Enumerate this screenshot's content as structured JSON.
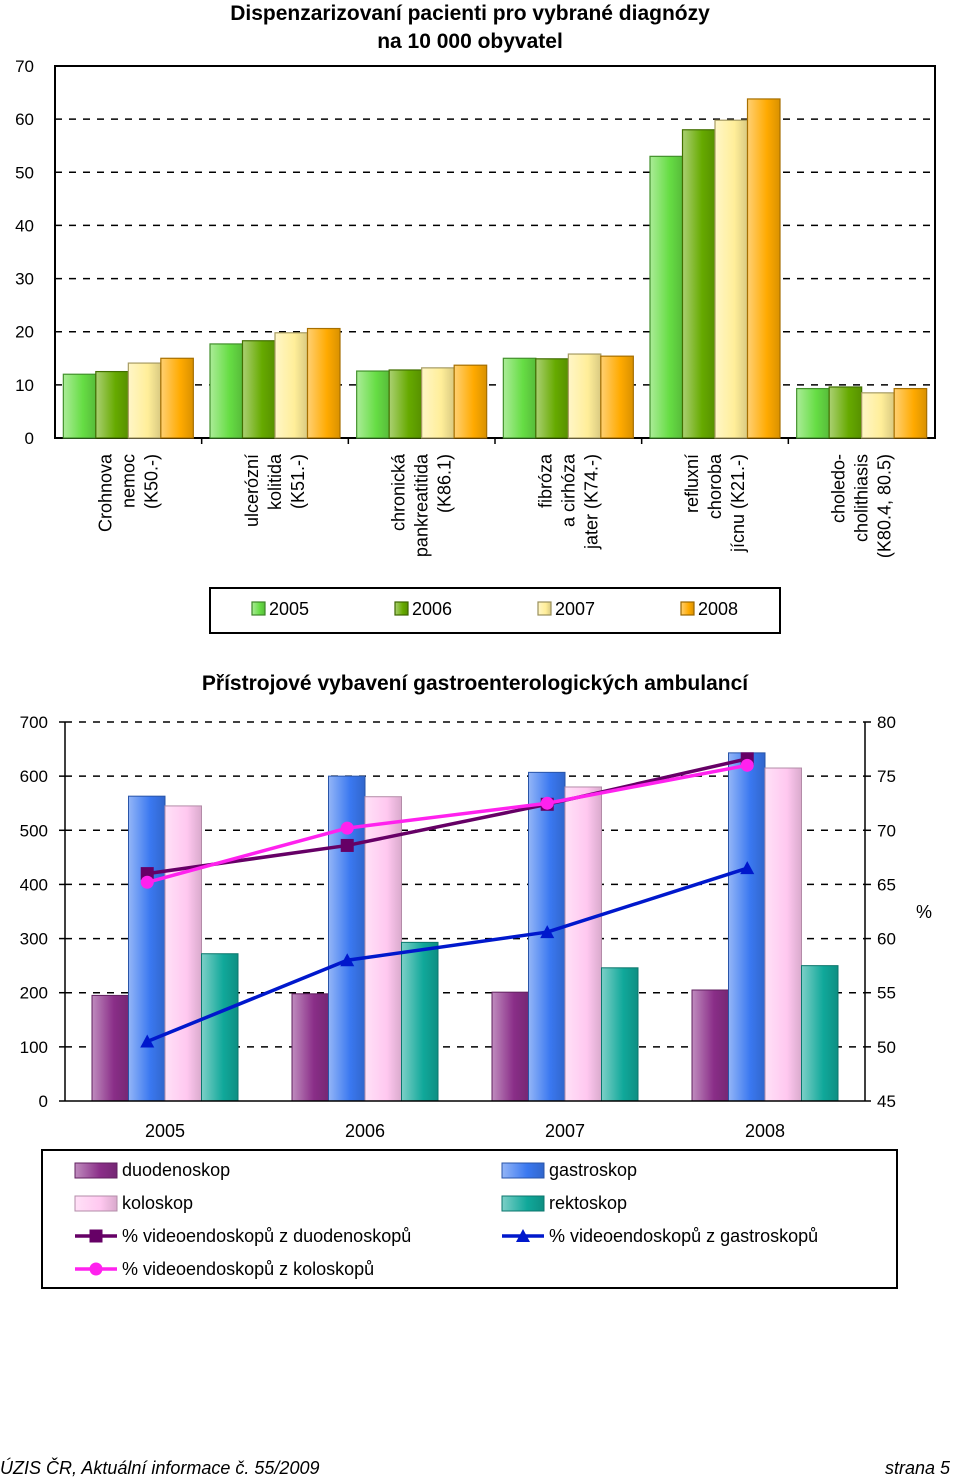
{
  "chart_data": [
    {
      "type": "bar",
      "title": "Dispenzarizovaní pacienti pro vybrané diagnózy",
      "subtitle": "na 10 000 obyvatel",
      "ylim": [
        0,
        70
      ],
      "yticks": [
        "0",
        "10",
        "20",
        "30",
        "40",
        "50",
        "60",
        "70"
      ],
      "grid": "dashed horizontal",
      "legend_position": "bottom",
      "categories": [
        [
          "Crohnova",
          "nemoc",
          "(K50.-)"
        ],
        [
          "ulcerózní",
          "kolitida",
          "(K51.-)"
        ],
        [
          "chronická",
          "pankreatitida",
          "(K86.1)"
        ],
        [
          "fibróza",
          "a cirhóza",
          "jater (K74.-)"
        ],
        [
          "refluxní",
          "choroba",
          "jícnu (K21.-)"
        ],
        [
          "choledo-",
          "cholithiasis",
          "(K80.4, 80.5)"
        ]
      ],
      "series": [
        {
          "name": "2005",
          "color": "#66DD44",
          "values": [
            12.0,
            17.7,
            12.6,
            15.0,
            53.0,
            9.3
          ]
        },
        {
          "name": "2006",
          "color": "#66AA00",
          "values": [
            12.5,
            18.3,
            12.8,
            14.9,
            58.0,
            9.6
          ]
        },
        {
          "name": "2007",
          "color": "#FFEE99",
          "values": [
            14.1,
            19.8,
            13.2,
            15.8,
            59.8,
            8.5
          ]
        },
        {
          "name": "2008",
          "color": "#FFAA00",
          "values": [
            15.0,
            20.6,
            13.7,
            15.4,
            63.8,
            9.3
          ]
        }
      ]
    },
    {
      "type": "bar",
      "title": "Přístrojové vybavení gastroenterologických ambulancí",
      "ylim": [
        0,
        700
      ],
      "yticks": [
        "0",
        "100",
        "200",
        "300",
        "400",
        "500",
        "600",
        "700"
      ],
      "y2lim": [
        45,
        80
      ],
      "y2ticks": [
        "45",
        "50",
        "55",
        "60",
        "65",
        "70",
        "75",
        "80"
      ],
      "y2label": "%",
      "grid": "dashed horizontal",
      "legend_position": "bottom",
      "categories": [
        "2005",
        "2006",
        "2007",
        "2008"
      ],
      "series": [
        {
          "name": "duodenoskop",
          "color": "#8A2E88",
          "values": [
            195,
            198,
            201,
            205
          ]
        },
        {
          "name": "gastroskop",
          "color": "#3A78F0",
          "values": [
            563,
            600,
            607,
            643
          ]
        },
        {
          "name": "koloskop",
          "color": "#FFC8F0",
          "values": [
            545,
            562,
            580,
            615
          ]
        },
        {
          "name": "rektoskop",
          "color": "#10A89A",
          "values": [
            272,
            293,
            246,
            250
          ]
        }
      ],
      "line_series": [
        {
          "name": "% videoendoskopů z duodenoskopů",
          "color": "#660066",
          "marker": "square",
          "values": [
            66.0,
            68.6,
            72.4,
            76.6
          ]
        },
        {
          "name": "% videoendoskopů z gastroskopů",
          "color": "#0018CC",
          "marker": "triangle",
          "values": [
            50.5,
            58.0,
            60.6,
            66.5
          ]
        },
        {
          "name": "% videoendoskopů z koloskopů",
          "color": "#FF22EE",
          "marker": "circle",
          "values": [
            65.2,
            70.2,
            72.5,
            76.0
          ]
        }
      ]
    }
  ],
  "footer": {
    "left": "ÚZIS ČR, Aktuální informace č. 55/2009",
    "right": "strana 5"
  }
}
